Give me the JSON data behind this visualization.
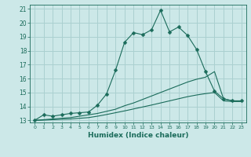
{
  "xlabel": "Humidex (Indice chaleur)",
  "bg_color": "#cce8e8",
  "grid_color": "#aad0d0",
  "line_color": "#1a6b5a",
  "xlim": [
    -0.5,
    23.5
  ],
  "ylim": [
    12.85,
    21.3
  ],
  "yticks": [
    13,
    14,
    15,
    16,
    17,
    18,
    19,
    20,
    21
  ],
  "xticks": [
    0,
    1,
    2,
    3,
    4,
    5,
    6,
    7,
    8,
    9,
    10,
    11,
    12,
    13,
    14,
    15,
    16,
    17,
    18,
    19,
    20,
    21,
    22,
    23
  ],
  "lines": [
    {
      "x": [
        0,
        1,
        2,
        3,
        4,
        5,
        6,
        7,
        8,
        9,
        10,
        11,
        12,
        13,
        14,
        15,
        16,
        17,
        18,
        19,
        20,
        21,
        22,
        23
      ],
      "y": [
        13.0,
        13.4,
        13.3,
        13.4,
        13.5,
        13.55,
        13.6,
        14.1,
        14.9,
        16.6,
        18.6,
        19.3,
        19.15,
        19.5,
        20.9,
        19.35,
        19.7,
        19.1,
        18.1,
        16.5,
        15.1,
        14.55,
        14.4,
        14.4
      ],
      "marker": "D",
      "markersize": 2.5
    },
    {
      "x": [
        0,
        1,
        2,
        3,
        4,
        5,
        6,
        7,
        8,
        9,
        10,
        11,
        12,
        13,
        14,
        15,
        16,
        17,
        18,
        19,
        20,
        21,
        22,
        23
      ],
      "y": [
        13.0,
        13.05,
        13.1,
        13.15,
        13.2,
        13.3,
        13.4,
        13.5,
        13.65,
        13.8,
        14.05,
        14.25,
        14.5,
        14.75,
        15.0,
        15.25,
        15.5,
        15.75,
        15.95,
        16.1,
        16.5,
        14.55,
        14.4,
        14.4
      ],
      "marker": null,
      "markersize": 0
    },
    {
      "x": [
        0,
        1,
        2,
        3,
        4,
        5,
        6,
        7,
        8,
        9,
        10,
        11,
        12,
        13,
        14,
        15,
        16,
        17,
        18,
        19,
        20,
        21,
        22,
        23
      ],
      "y": [
        13.0,
        13.02,
        13.05,
        13.08,
        13.1,
        13.15,
        13.2,
        13.3,
        13.42,
        13.55,
        13.68,
        13.82,
        13.96,
        14.1,
        14.25,
        14.4,
        14.55,
        14.7,
        14.82,
        14.92,
        15.0,
        14.4,
        14.35,
        14.35
      ],
      "marker": null,
      "markersize": 0
    }
  ]
}
